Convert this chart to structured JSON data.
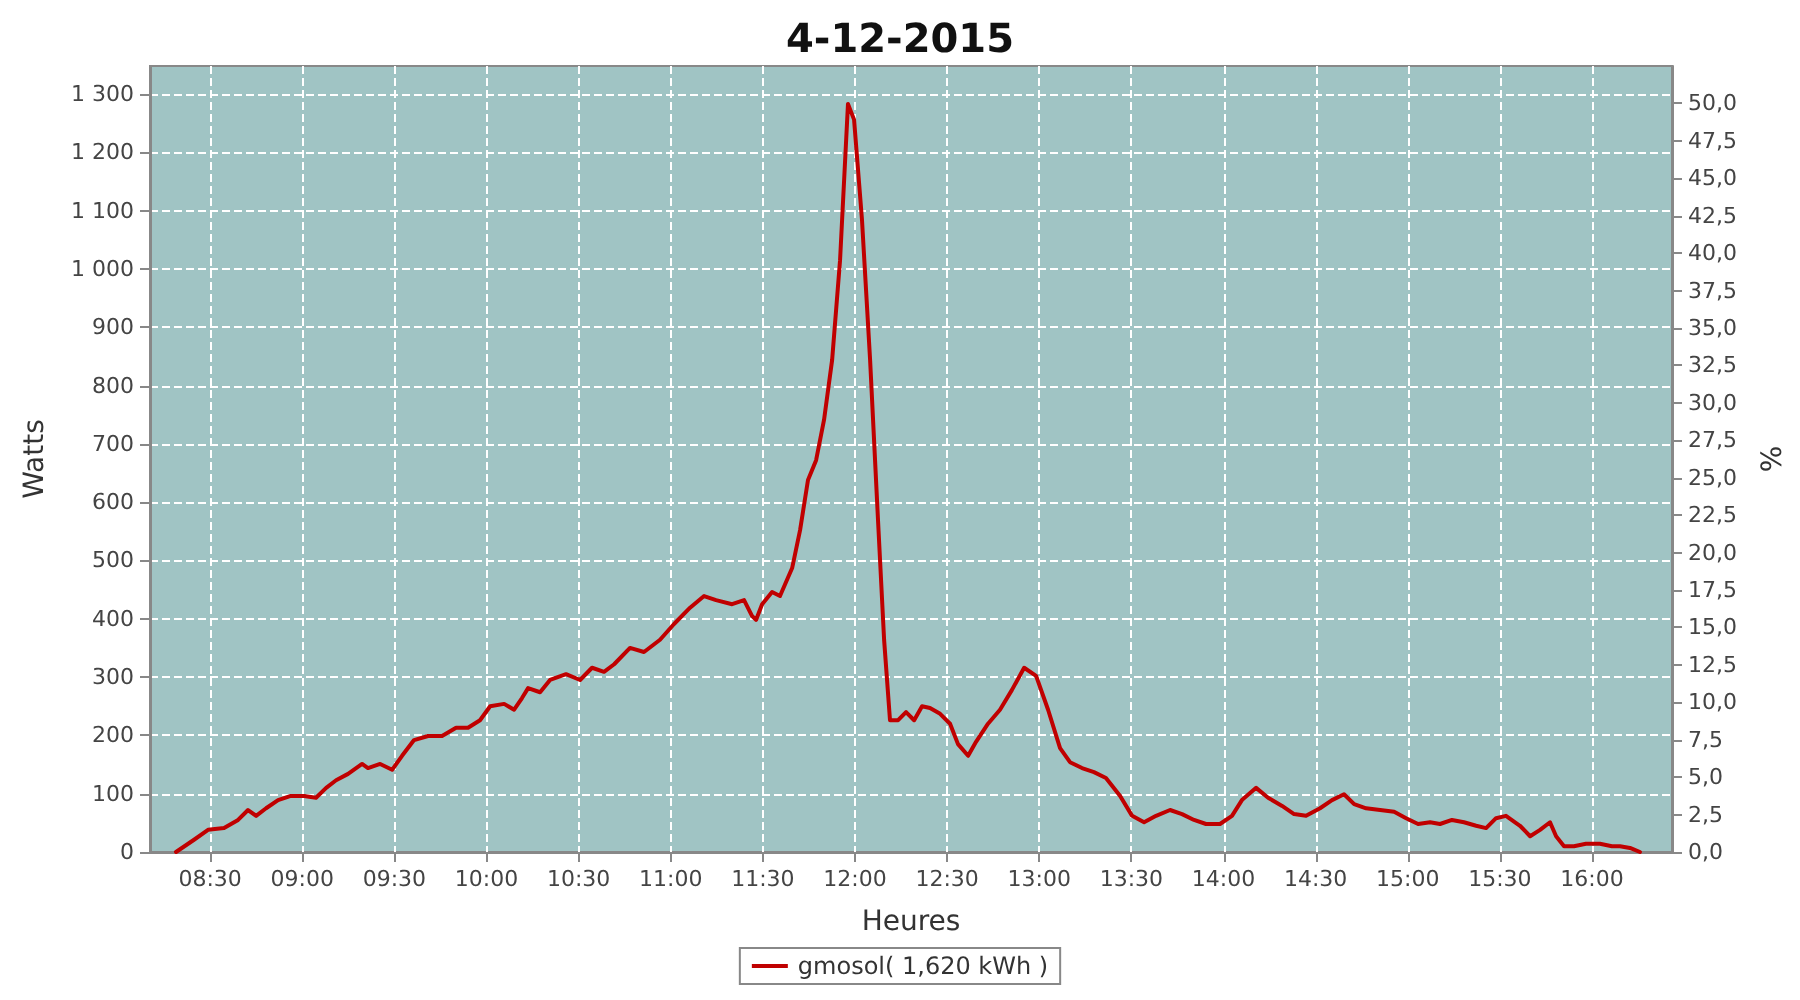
{
  "chart_data": {
    "type": "line",
    "title": "4-12-2015",
    "xlabel": "Heures",
    "ylabel": "Watts",
    "y2label": "%",
    "xlim": [
      8.174,
      16.434
    ],
    "xticks": [
      {
        "value": 8.5,
        "label": "08:30"
      },
      {
        "value": 9,
        "label": "09:00"
      },
      {
        "value": 9.5,
        "label": "09:30"
      },
      {
        "value": 10,
        "label": "10:00"
      },
      {
        "value": 10.5,
        "label": "10:30"
      },
      {
        "value": 11,
        "label": "11:00"
      },
      {
        "value": 11.5,
        "label": "11:30"
      },
      {
        "value": 12,
        "label": "12:00"
      },
      {
        "value": 12.5,
        "label": "12:30"
      },
      {
        "value": 13,
        "label": "13:00"
      },
      {
        "value": 13.5,
        "label": "13:30"
      },
      {
        "value": 14,
        "label": "14:00"
      },
      {
        "value": 14.5,
        "label": "14:30"
      },
      {
        "value": 15,
        "label": "15:00"
      },
      {
        "value": 15.5,
        "label": "15:30"
      },
      {
        "value": 16,
        "label": "16:00"
      }
    ],
    "ylim": [
      0,
      1348
    ],
    "yticks": [
      0,
      100,
      200,
      300,
      400,
      500,
      600,
      700,
      800,
      900,
      {
        "value": 1000,
        "label": "1 000"
      },
      {
        "value": 1100,
        "label": "1 100"
      },
      {
        "value": 1200,
        "label": "1 200"
      },
      {
        "value": 1300,
        "label": "1 300"
      }
    ],
    "y2lim": [
      0,
      52.5
    ],
    "y2ticks": [
      {
        "value": 0,
        "label": "0,0"
      },
      {
        "value": 2.5,
        "label": "2,5"
      },
      {
        "value": 5,
        "label": "5,0"
      },
      {
        "value": 7.5,
        "label": "7,5"
      },
      {
        "value": 10,
        "label": "10,0"
      },
      {
        "value": 12.5,
        "label": "12,5"
      },
      {
        "value": 15,
        "label": "15,0"
      },
      {
        "value": 17.5,
        "label": "17,5"
      },
      {
        "value": 20,
        "label": "20,0"
      },
      {
        "value": 22.5,
        "label": "22,5"
      },
      {
        "value": 25,
        "label": "25,0"
      },
      {
        "value": 27.5,
        "label": "27,5"
      },
      {
        "value": 30,
        "label": "30,0"
      },
      {
        "value": 32.5,
        "label": "32,5"
      },
      {
        "value": 35,
        "label": "35,0"
      },
      {
        "value": 37.5,
        "label": "37,5"
      },
      {
        "value": 40,
        "label": "40,0"
      },
      {
        "value": 42.5,
        "label": "42,5"
      },
      {
        "value": 45,
        "label": "45,0"
      },
      {
        "value": 47.5,
        "label": "47,5"
      },
      {
        "value": 50,
        "label": "50,0"
      }
    ],
    "grid": true,
    "legend": "bottom",
    "marker": "none",
    "line_style": "solid",
    "series": [
      {
        "name": "gmosol( 1,620 kWh )",
        "color": "#c00000",
        "x": [
          8.315,
          8.413,
          8.489,
          8.576,
          8.652,
          8.706,
          8.75,
          8.804,
          8.869,
          8.934,
          9.01,
          9.075,
          9.13,
          9.184,
          9.249,
          9.325,
          9.357,
          9.423,
          9.488,
          9.542,
          9.607,
          9.683,
          9.759,
          9.835,
          9.9,
          9.965,
          10.02,
          10.096,
          10.15,
          10.193,
          10.226,
          10.291,
          10.345,
          10.432,
          10.508,
          10.573,
          10.638,
          10.693,
          10.779,
          10.855,
          10.942,
          11.018,
          11.105,
          11.181,
          11.246,
          11.333,
          11.398,
          11.441,
          11.463,
          11.496,
          11.55,
          11.593,
          11.659,
          11.702,
          11.745,
          11.789,
          11.832,
          11.876,
          11.919,
          11.962,
          11.995,
          12.038,
          12.082,
          12.125,
          12.158,
          12.19,
          12.234,
          12.277,
          12.321,
          12.364,
          12.407,
          12.462,
          12.516,
          12.559,
          12.614,
          12.657,
          12.722,
          12.787,
          12.852,
          12.918,
          12.983,
          13.048,
          13.113,
          13.167,
          13.232,
          13.297,
          13.362,
          13.439,
          13.504,
          13.569,
          13.634,
          13.71,
          13.775,
          13.84,
          13.905,
          13.981,
          14.046,
          14.1,
          14.177,
          14.242,
          14.318,
          14.383,
          14.448,
          14.524,
          14.589,
          14.654,
          14.709,
          14.774,
          14.85,
          14.926,
          14.991,
          15.056,
          15.121,
          15.175,
          15.24,
          15.305,
          15.371,
          15.425,
          15.479,
          15.533,
          15.609,
          15.664,
          15.718,
          15.772,
          15.805,
          15.848,
          15.902,
          15.967,
          16.043,
          16.108,
          16.152,
          16.206,
          16.26
        ],
        "values": [
          0,
          21,
          38,
          41,
          55,
          72,
          62,
          75,
          89,
          96,
          96,
          93,
          110,
          123,
          134,
          151,
          144,
          151,
          141,
          165,
          192,
          199,
          199,
          213,
          213,
          226,
          250,
          254,
          244,
          264,
          281,
          274,
          295,
          305,
          295,
          316,
          309,
          322,
          350,
          343,
          364,
          391,
          419,
          439,
          432,
          425,
          432,
          405,
          398,
          425,
          446,
          439,
          487,
          552,
          638,
          672,
          741,
          844,
          1015,
          1283,
          1256,
          1084,
          844,
          569,
          364,
          226,
          226,
          240,
          226,
          250,
          247,
          237,
          220,
          185,
          165,
          189,
          220,
          244,
          278,
          316,
          302,
          244,
          178,
          154,
          144,
          137,
          127,
          96,
          62,
          51,
          62,
          72,
          65,
          55,
          48,
          48,
          62,
          89,
          110,
          93,
          79,
          65,
          62,
          75,
          89,
          99,
          82,
          75,
          72,
          69,
          58,
          48,
          51,
          48,
          55,
          51,
          45,
          41,
          58,
          62,
          45,
          27,
          38,
          51,
          27,
          10,
          10,
          14,
          14,
          10,
          10,
          7,
          0
        ]
      }
    ]
  }
}
